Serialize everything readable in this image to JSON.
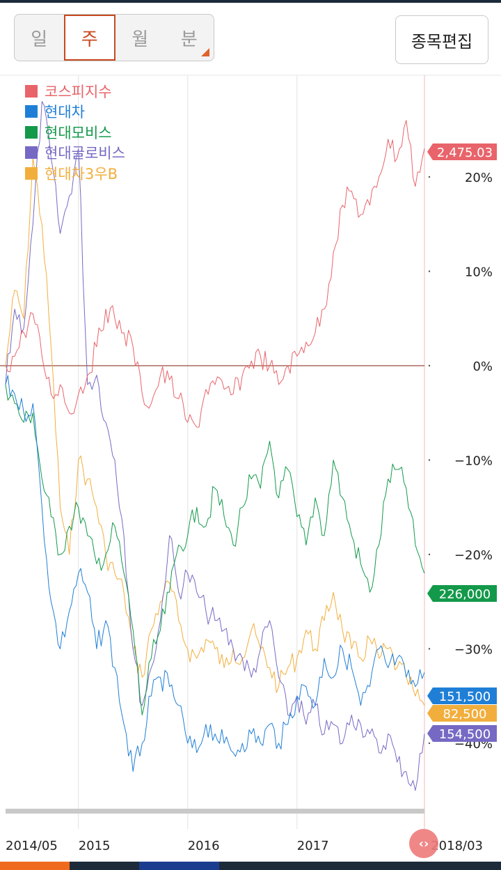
{
  "periods": [
    {
      "label": "일",
      "active": false
    },
    {
      "label": "주",
      "active": true
    },
    {
      "label": "월",
      "active": false
    },
    {
      "label": "분",
      "active": false
    }
  ],
  "edit_button": "종목편집",
  "scroll_handle_glyph": "‹›",
  "colors": {
    "kospi": "#e8646a",
    "hyundai": "#1f7fd6",
    "mobis": "#13994a",
    "glovis": "#7669c4",
    "pref": "#f2ae3c"
  },
  "chart_data": {
    "type": "line",
    "x_start": "2014/05",
    "x_end": "2018/03",
    "x_ticks": [
      {
        "label": "2014/05",
        "date": "2014-05"
      },
      {
        "label": "2015",
        "date": "2015-01"
      },
      {
        "label": "2016",
        "date": "2016-01"
      },
      {
        "label": "2017",
        "date": "2017-01"
      },
      {
        "label": "2018/03",
        "date": "2018-03"
      }
    ],
    "y_ticks": [
      {
        "value": 20,
        "label": "20%"
      },
      {
        "value": 10,
        "label": "10%"
      },
      {
        "value": 0,
        "label": "0%"
      },
      {
        "value": -10,
        "label": "−10%"
      },
      {
        "value": -20,
        "label": "−20%"
      },
      {
        "value": -30,
        "label": "−30%"
      },
      {
        "value": -40,
        "label": "−40%"
      }
    ],
    "ylim": [
      -47,
      31
    ],
    "series": [
      {
        "name": "코스피지수",
        "color_key": "kospi",
        "last_label": "2,475.03",
        "points": [
          [
            "2014-05",
            0
          ],
          [
            "2014-06",
            1
          ],
          [
            "2014-07",
            3.5
          ],
          [
            "2014-08",
            5.5
          ],
          [
            "2014-09",
            1
          ],
          [
            "2014-10",
            -3
          ],
          [
            "2014-11",
            -2
          ],
          [
            "2014-12",
            -5
          ],
          [
            "2015-01",
            -3
          ],
          [
            "2015-02",
            -1
          ],
          [
            "2015-03",
            2
          ],
          [
            "2015-04",
            6
          ],
          [
            "2015-05",
            5
          ],
          [
            "2015-06",
            3.5
          ],
          [
            "2015-07",
            2
          ],
          [
            "2015-08",
            -3
          ],
          [
            "2015-09",
            -4
          ],
          [
            "2015-10",
            -1
          ],
          [
            "2015-11",
            -1.5
          ],
          [
            "2015-12",
            -3.5
          ],
          [
            "2016-01",
            -6
          ],
          [
            "2016-02",
            -6.5
          ],
          [
            "2016-03",
            -2.5
          ],
          [
            "2016-04",
            -2
          ],
          [
            "2016-05",
            -2.5
          ],
          [
            "2016-06",
            -3
          ],
          [
            "2016-07",
            -1
          ],
          [
            "2016-08",
            0.5
          ],
          [
            "2016-09",
            1
          ],
          [
            "2016-10",
            0
          ],
          [
            "2016-11",
            -2
          ],
          [
            "2016-12",
            0
          ],
          [
            "2017-01",
            1
          ],
          [
            "2017-02",
            2.5
          ],
          [
            "2017-03",
            3.5
          ],
          [
            "2017-04",
            6
          ],
          [
            "2017-05",
            12
          ],
          [
            "2017-06",
            17
          ],
          [
            "2017-07",
            18.5
          ],
          [
            "2017-08",
            16
          ],
          [
            "2017-09",
            17
          ],
          [
            "2017-10",
            20
          ],
          [
            "2017-11",
            24
          ],
          [
            "2017-12",
            22
          ],
          [
            "2018-01",
            26
          ],
          [
            "2018-02",
            19
          ],
          [
            "2018-03",
            23
          ]
        ]
      },
      {
        "name": "현대차",
        "color_key": "hyundai",
        "last_label": "151,500",
        "points": [
          [
            "2014-05",
            -2
          ],
          [
            "2014-06",
            -3
          ],
          [
            "2014-07",
            -5
          ],
          [
            "2014-08",
            -4
          ],
          [
            "2014-09",
            -15
          ],
          [
            "2014-10",
            -25
          ],
          [
            "2014-11",
            -30
          ],
          [
            "2014-12",
            -26
          ],
          [
            "2015-01",
            -22
          ],
          [
            "2015-02",
            -24
          ],
          [
            "2015-03",
            -30
          ],
          [
            "2015-04",
            -27
          ],
          [
            "2015-05",
            -32
          ],
          [
            "2015-06",
            -38
          ],
          [
            "2015-07",
            -43
          ],
          [
            "2015-08",
            -40
          ],
          [
            "2015-09",
            -35
          ],
          [
            "2015-10",
            -33
          ],
          [
            "2015-11",
            -34
          ],
          [
            "2015-12",
            -36
          ],
          [
            "2016-01",
            -40
          ],
          [
            "2016-02",
            -41
          ],
          [
            "2016-03",
            -38
          ],
          [
            "2016-04",
            -39
          ],
          [
            "2016-05",
            -40
          ],
          [
            "2016-06",
            -41
          ],
          [
            "2016-07",
            -40
          ],
          [
            "2016-08",
            -39
          ],
          [
            "2016-09",
            -40
          ],
          [
            "2016-10",
            -38
          ],
          [
            "2016-11",
            -40
          ],
          [
            "2016-12",
            -38
          ],
          [
            "2017-01",
            -35
          ],
          [
            "2017-02",
            -34
          ],
          [
            "2017-03",
            -36
          ],
          [
            "2017-04",
            -31
          ],
          [
            "2017-05",
            -33
          ],
          [
            "2017-06",
            -30
          ],
          [
            "2017-07",
            -32
          ],
          [
            "2017-08",
            -36
          ],
          [
            "2017-09",
            -34
          ],
          [
            "2017-10",
            -30
          ],
          [
            "2017-11",
            -32
          ],
          [
            "2017-12",
            -31
          ],
          [
            "2018-01",
            -33
          ],
          [
            "2018-02",
            -34
          ],
          [
            "2018-03",
            -32.5
          ]
        ]
      },
      {
        "name": "현대모비스",
        "color_key": "mobis",
        "last_label": "226,000",
        "points": [
          [
            "2014-05",
            -2
          ],
          [
            "2014-06",
            -4
          ],
          [
            "2014-07",
            -6
          ],
          [
            "2014-08",
            -5
          ],
          [
            "2014-09",
            -12
          ],
          [
            "2014-10",
            -16
          ],
          [
            "2014-11",
            -20
          ],
          [
            "2014-12",
            -17
          ],
          [
            "2015-01",
            -15
          ],
          [
            "2015-02",
            -18
          ],
          [
            "2015-03",
            -21
          ],
          [
            "2015-04",
            -20
          ],
          [
            "2015-05",
            -17
          ],
          [
            "2015-06",
            -22
          ],
          [
            "2015-07",
            -28
          ],
          [
            "2015-08",
            -37
          ],
          [
            "2015-09",
            -31
          ],
          [
            "2015-10",
            -28
          ],
          [
            "2015-11",
            -24
          ],
          [
            "2015-12",
            -19
          ],
          [
            "2016-01",
            -18
          ],
          [
            "2016-02",
            -15
          ],
          [
            "2016-03",
            -17
          ],
          [
            "2016-04",
            -13
          ],
          [
            "2016-05",
            -16
          ],
          [
            "2016-06",
            -19
          ],
          [
            "2016-07",
            -15
          ],
          [
            "2016-08",
            -12
          ],
          [
            "2016-09",
            -13
          ],
          [
            "2016-10",
            -8
          ],
          [
            "2016-11",
            -14
          ],
          [
            "2016-12",
            -11
          ],
          [
            "2017-01",
            -16
          ],
          [
            "2017-02",
            -19
          ],
          [
            "2017-03",
            -14
          ],
          [
            "2017-04",
            -18
          ],
          [
            "2017-05",
            -10
          ],
          [
            "2017-06",
            -14
          ],
          [
            "2017-07",
            -18
          ],
          [
            "2017-08",
            -21
          ],
          [
            "2017-09",
            -24
          ],
          [
            "2017-10",
            -19
          ],
          [
            "2017-11",
            -12
          ],
          [
            "2017-12",
            -11
          ],
          [
            "2018-01",
            -13
          ],
          [
            "2018-02",
            -19
          ],
          [
            "2018-03",
            -22
          ]
        ]
      },
      {
        "name": "현대글로비스",
        "color_key": "glovis",
        "last_label": "154,500",
        "points": [
          [
            "2014-05",
            -2
          ],
          [
            "2014-06",
            6
          ],
          [
            "2014-07",
            4
          ],
          [
            "2014-08",
            15
          ],
          [
            "2014-09",
            28
          ],
          [
            "2014-10",
            22
          ],
          [
            "2014-11",
            14
          ],
          [
            "2014-12",
            18
          ],
          [
            "2015-01",
            23
          ],
          [
            "2015-02",
            -2
          ],
          [
            "2015-03",
            -1
          ],
          [
            "2015-04",
            -6
          ],
          [
            "2015-05",
            -10
          ],
          [
            "2015-06",
            -18
          ],
          [
            "2015-07",
            -30
          ],
          [
            "2015-08",
            -36
          ],
          [
            "2015-09",
            -32
          ],
          [
            "2015-10",
            -27
          ],
          [
            "2015-11",
            -18
          ],
          [
            "2015-12",
            -24
          ],
          [
            "2016-01",
            -22
          ],
          [
            "2016-02",
            -24
          ],
          [
            "2016-03",
            -26
          ],
          [
            "2016-04",
            -27
          ],
          [
            "2016-05",
            -28
          ],
          [
            "2016-06",
            -30
          ],
          [
            "2016-07",
            -31
          ],
          [
            "2016-08",
            -33
          ],
          [
            "2016-09",
            -30
          ],
          [
            "2016-10",
            -27
          ],
          [
            "2016-11",
            -33
          ],
          [
            "2016-12",
            -37
          ],
          [
            "2017-01",
            -35
          ],
          [
            "2017-02",
            -38
          ],
          [
            "2017-03",
            -36
          ],
          [
            "2017-04",
            -39
          ],
          [
            "2017-05",
            -38
          ],
          [
            "2017-06",
            -40
          ],
          [
            "2017-07",
            -37
          ],
          [
            "2017-08",
            -38
          ],
          [
            "2017-09",
            -39
          ],
          [
            "2017-10",
            -41
          ],
          [
            "2017-11",
            -39
          ],
          [
            "2017-12",
            -42
          ],
          [
            "2018-01",
            -43
          ],
          [
            "2018-02",
            -45
          ],
          [
            "2018-03",
            -39
          ]
        ]
      },
      {
        "name": "현대차3우B",
        "color_key": "pref",
        "last_label": "82,500",
        "points": [
          [
            "2014-05",
            0
          ],
          [
            "2014-06",
            8
          ],
          [
            "2014-07",
            5
          ],
          [
            "2014-08",
            22
          ],
          [
            "2014-09",
            15
          ],
          [
            "2014-10",
            2
          ],
          [
            "2014-11",
            -15
          ],
          [
            "2014-12",
            -20
          ],
          [
            "2015-01",
            -10
          ],
          [
            "2015-02",
            -12
          ],
          [
            "2015-03",
            -15
          ],
          [
            "2015-04",
            -20
          ],
          [
            "2015-05",
            -22
          ],
          [
            "2015-06",
            -24
          ],
          [
            "2015-07",
            -30
          ],
          [
            "2015-08",
            -33
          ],
          [
            "2015-09",
            -28
          ],
          [
            "2015-10",
            -25
          ],
          [
            "2015-11",
            -23
          ],
          [
            "2015-12",
            -27
          ],
          [
            "2016-01",
            -30
          ],
          [
            "2016-02",
            -31
          ],
          [
            "2016-03",
            -29
          ],
          [
            "2016-04",
            -30
          ],
          [
            "2016-05",
            -32
          ],
          [
            "2016-06",
            -30
          ],
          [
            "2016-07",
            -31
          ],
          [
            "2016-08",
            -28
          ],
          [
            "2016-09",
            -30
          ],
          [
            "2016-10",
            -32
          ],
          [
            "2016-11",
            -34
          ],
          [
            "2016-12",
            -32
          ],
          [
            "2017-01",
            -31
          ],
          [
            "2017-02",
            -28
          ],
          [
            "2017-03",
            -30
          ],
          [
            "2017-04",
            -27
          ],
          [
            "2017-05",
            -24
          ],
          [
            "2017-06",
            -28
          ],
          [
            "2017-07",
            -30
          ],
          [
            "2017-08",
            -31
          ],
          [
            "2017-09",
            -29
          ],
          [
            "2017-10",
            -31
          ],
          [
            "2017-11",
            -30
          ],
          [
            "2017-12",
            -32
          ],
          [
            "2018-01",
            -33
          ],
          [
            "2018-02",
            -35
          ],
          [
            "2018-03",
            -36
          ]
        ]
      }
    ]
  }
}
